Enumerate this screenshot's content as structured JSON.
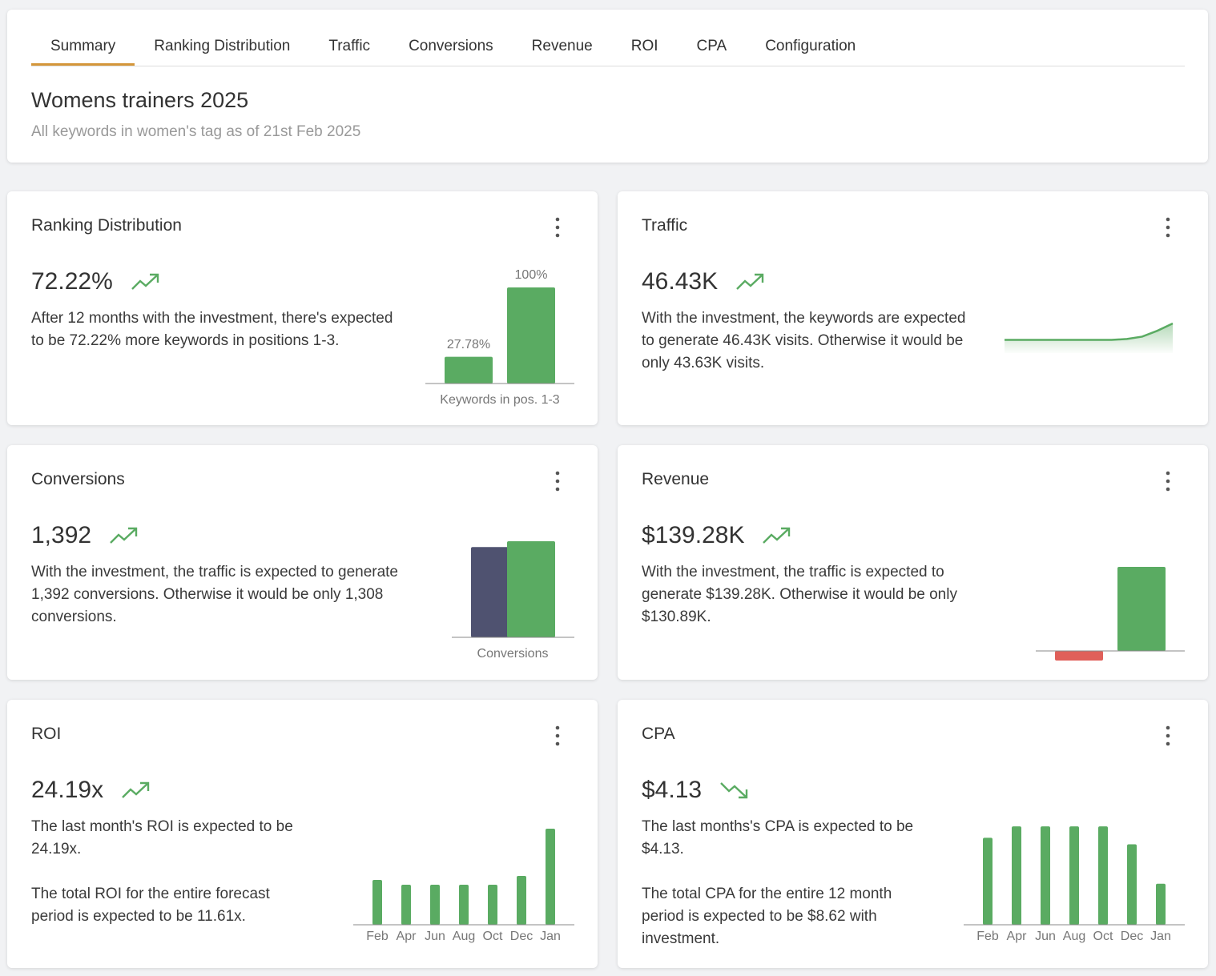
{
  "tabs": [
    "Summary",
    "Ranking Distribution",
    "Traffic",
    "Conversions",
    "Revenue",
    "ROI",
    "CPA",
    "Configuration"
  ],
  "active_tab": 0,
  "header": {
    "title": "Womens trainers 2025",
    "subtitle": "All keywords in women's tag as of 21st Feb 2025"
  },
  "cards": [
    {
      "title": "Ranking Distribution",
      "metric": "72.22%",
      "trend": "up",
      "description": [
        "After 12 months with the investment, there's expected to be 72.22% more keywords in positions 1-3."
      ],
      "chart": {
        "type": "bar",
        "values": [
          27.78,
          100
        ],
        "value_labels": [
          "27.78%",
          "100%"
        ],
        "colors": [
          "#5aab62",
          "#5aab62"
        ],
        "xlabel": "Keywords in pos. 1-3",
        "ylim": [
          0,
          100
        ]
      }
    },
    {
      "title": "Traffic",
      "metric": "46.43K",
      "trend": "up",
      "description": [
        "With the investment, the keywords are expected to generate 46.43K visits. Otherwise it would be only 43.63K visits."
      ],
      "chart": {
        "type": "area",
        "values": [
          10,
          10,
          10,
          10,
          10,
          10,
          10,
          10,
          10.3,
          11,
          12.8,
          15
        ],
        "color": "#5aab62",
        "ylim": [
          6,
          15
        ]
      }
    },
    {
      "title": "Conversions",
      "metric": "1,392",
      "trend": "up",
      "description": [
        "With the investment, the traffic is expected to generate 1,392 conversions. Otherwise it would be only 1,308 conversions."
      ],
      "chart": {
        "type": "overlap",
        "values": [
          1308,
          1392
        ],
        "colors": [
          "#4f5270",
          "#5aab62"
        ],
        "xlabel": "Conversions",
        "ylim": [
          0,
          1392
        ]
      }
    },
    {
      "title": "Revenue",
      "metric": "$139.28K",
      "trend": "up",
      "description": [
        "With the investment, the traffic is expected to generate $139.28K. Otherwise it would be only $130.89K."
      ],
      "chart": {
        "type": "bar",
        "values": [
          -12,
          105
        ],
        "colors": [
          "#e0605a",
          "#5aab62"
        ],
        "ylim": [
          -20,
          120
        ]
      }
    },
    {
      "title": "ROI",
      "metric": "24.19x",
      "trend": "up",
      "description": [
        "The last month's ROI is expected to be 24.19x.",
        "The total ROI for the entire forecast period is expected to be 11.61x."
      ],
      "chart": {
        "type": "columns",
        "categories": [
          "Feb",
          "Apr",
          "Jun",
          "Aug",
          "Oct",
          "Dec",
          "Jan"
        ],
        "values": [
          11.29,
          10.08,
          10.08,
          10.08,
          10.08,
          12.3,
          24.19
        ],
        "color": "#5aab62",
        "ylim": [
          0,
          25
        ]
      }
    },
    {
      "title": "CPA",
      "metric": "$4.13",
      "trend": "down",
      "description": [
        "The last months's CPA is expected to be $4.13.",
        "The total CPA for the entire 12 month period is expected to be $8.62 with investment."
      ],
      "chart": {
        "type": "columns",
        "categories": [
          "Feb",
          "Apr",
          "Jun",
          "Aug",
          "Oct",
          "Dec",
          "Jan"
        ],
        "values": [
          8.76,
          9.91,
          9.91,
          9.91,
          9.91,
          8.1,
          4.13
        ],
        "color": "#5aab62",
        "ylim": [
          0,
          10
        ]
      }
    }
  ]
}
